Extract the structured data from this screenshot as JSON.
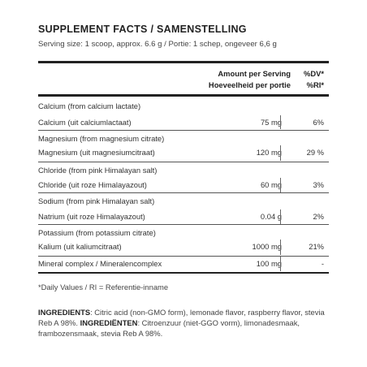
{
  "title": "SUPPLEMENT FACTS / SAMENSTELLING",
  "serving": "Serving size: 1 scoop, approx. 6.6 g / Portie: 1 schep, ongeveer 6,6 g",
  "header": {
    "amount_en": "Amount per Serving",
    "amount_nl": "Hoeveelheid per portie",
    "dv_en": "%DV*",
    "dv_nl": "%RI*"
  },
  "rows": [
    {
      "line1": "Calcium (from calcium lactate)",
      "line2": "Calcium (uit calciumlactaat)",
      "amount": "75 mg",
      "dv": "6%"
    },
    {
      "line1": "Magnesium (from magnesium citrate)",
      "line2": "Magnesium (uit magnesiumcitraat)",
      "amount": "120 mg",
      "dv": "29 %"
    },
    {
      "line1": "Chloride (from pink Himalayan salt)",
      "line2": "Chloride (uit roze Himalayazout)",
      "amount": "60 mg",
      "dv": "3%"
    },
    {
      "line1": "Sodium (from pink Himalayan salt)",
      "line2": "Natrium (uit roze Himalayazout)",
      "amount": "0.04 g",
      "dv": "2%"
    },
    {
      "line1": "Potassium (from potassium citrate)",
      "line2": "Kalium (uit kaliumcitraat)",
      "amount": "1000 mg",
      "dv": "21%"
    },
    {
      "line1": "",
      "line2": "Mineral complex / Mineralencomplex",
      "amount": "100 mg",
      "dv": "-"
    }
  ],
  "footnote": "*Daily Values / RI = Referentie-inname",
  "ingredients": {
    "label_en": "INGREDIENTS",
    "text_en": ": Citric acid (non-GMO form), lemonade flavor, raspberry flavor, stevia Reb A 98%. ",
    "label_nl": "INGREDIËNTEN",
    "text_nl": ": Citroenzuur (niet-GGO vorm), limonadesmaak, frambozensmaak, stevia Reb A 98%."
  }
}
